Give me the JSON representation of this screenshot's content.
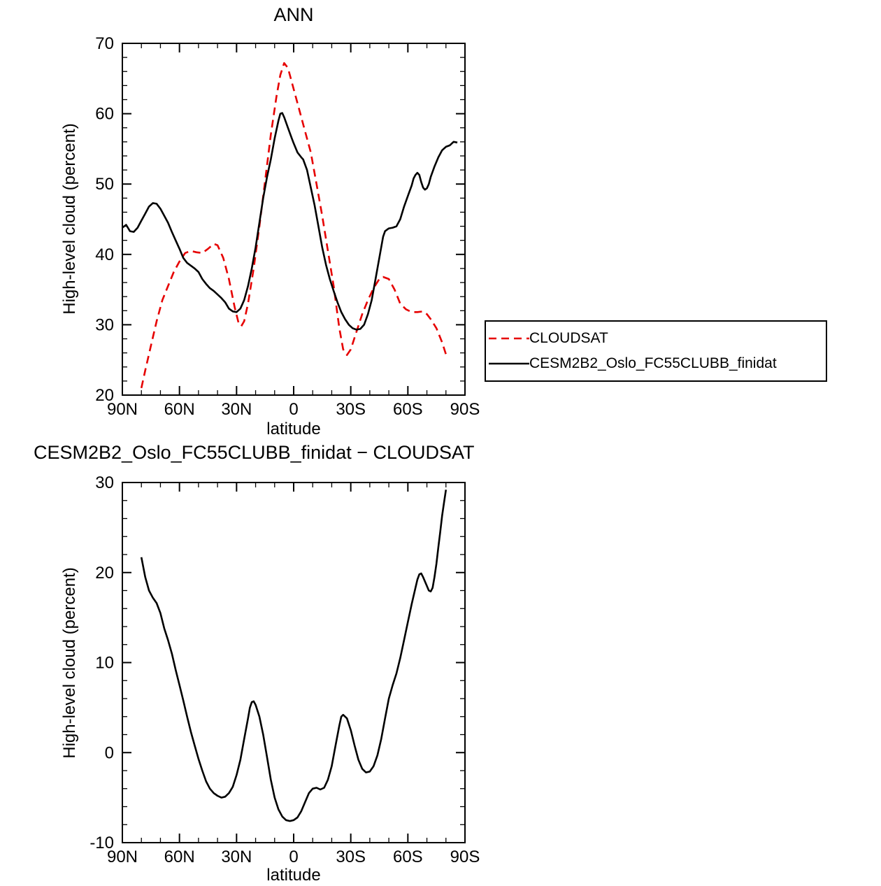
{
  "colors": {
    "cloudsat_red": "#e60000",
    "model_black": "#000000",
    "axis": "#000000"
  },
  "legend": {
    "entries": [
      "CLOUDSAT",
      "CESM2B2_Oslo_FC55CLUBB_finidat"
    ]
  },
  "chart_data": [
    {
      "id": "top",
      "type": "line",
      "title": "ANN",
      "ylabel": "High-level cloud (percent)",
      "xlabel": "latitude",
      "ylim": [
        20,
        70
      ],
      "xlim": [
        90,
        -90
      ],
      "yminor": 2,
      "xminor": 10,
      "yticks": [
        {
          "v": 20,
          "label": "20"
        },
        {
          "v": 30,
          "label": "30"
        },
        {
          "v": 40,
          "label": "40"
        },
        {
          "v": 50,
          "label": "50"
        },
        {
          "v": 60,
          "label": "60"
        },
        {
          "v": 70,
          "label": "70"
        }
      ],
      "xticks": [
        {
          "v": 90,
          "label": "90N"
        },
        {
          "v": 60,
          "label": "60N"
        },
        {
          "v": 30,
          "label": "30N"
        },
        {
          "v": 0,
          "label": "0"
        },
        {
          "v": -30,
          "label": "30S"
        },
        {
          "v": -60,
          "label": "60S"
        },
        {
          "v": -90,
          "label": "90S"
        }
      ],
      "legend_position": "outside-right",
      "series": [
        {
          "name": "CLOUDSAT",
          "color": "#e60000",
          "dash": "11 7",
          "points": [
            [
              80,
              21
            ],
            [
              78,
              23.5
            ],
            [
              75,
              27
            ],
            [
              72,
              30.5
            ],
            [
              69,
              33.5
            ],
            [
              66,
              35.5
            ],
            [
              63,
              37.5
            ],
            [
              60,
              39
            ],
            [
              57,
              40.2
            ],
            [
              54,
              40.5
            ],
            [
              51,
              40.3
            ],
            [
              48,
              40.2
            ],
            [
              45,
              40.8
            ],
            [
              42,
              41.5
            ],
            [
              40,
              41.3
            ],
            [
              37,
              39.5
            ],
            [
              34,
              36.5
            ],
            [
              31,
              32.5
            ],
            [
              29,
              30.3
            ],
            [
              27.5,
              29.8
            ],
            [
              26,
              30.5
            ],
            [
              24,
              33
            ],
            [
              21,
              38
            ],
            [
              18,
              44
            ],
            [
              15,
              50.5
            ],
            [
              12,
              57
            ],
            [
              9,
              62.5
            ],
            [
              7,
              65.5
            ],
            [
              5,
              67.2
            ],
            [
              3,
              66.5
            ],
            [
              1,
              64.5
            ],
            [
              0,
              63.5
            ],
            [
              -3,
              60.5
            ],
            [
              -6,
              57.5
            ],
            [
              -9,
              54.5
            ],
            [
              -12,
              50
            ],
            [
              -15,
              45.5
            ],
            [
              -18,
              40.5
            ],
            [
              -21,
              35.5
            ],
            [
              -24,
              29.5
            ],
            [
              -26,
              26.5
            ],
            [
              -28,
              25.7
            ],
            [
              -30,
              26.5
            ],
            [
              -33,
              29
            ],
            [
              -36,
              31.5
            ],
            [
              -39,
              33.5
            ],
            [
              -42,
              35.2
            ],
            [
              -45,
              36.5
            ],
            [
              -47,
              36.8
            ],
            [
              -50,
              36.5
            ],
            [
              -53,
              35
            ],
            [
              -56,
              33
            ],
            [
              -59,
              32.2
            ],
            [
              -62,
              31.8
            ],
            [
              -65,
              31.8
            ],
            [
              -68,
              31.9
            ],
            [
              -70,
              31.5
            ],
            [
              -72,
              30.8
            ],
            [
              -75,
              29.5
            ],
            [
              -78,
              27.5
            ],
            [
              -80,
              25.8
            ]
          ]
        },
        {
          "name": "CESM2B2_Oslo_FC55CLUBB_finidat",
          "color": "#000000",
          "dash": "",
          "points": [
            [
              90,
              43.8
            ],
            [
              88,
              44.2
            ],
            [
              86,
              43.3
            ],
            [
              84,
              43.2
            ],
            [
              82,
              43.8
            ],
            [
              80,
              44.8
            ],
            [
              78,
              45.8
            ],
            [
              76,
              46.8
            ],
            [
              74,
              47.3
            ],
            [
              72,
              47.2
            ],
            [
              70,
              46.5
            ],
            [
              68,
              45.5
            ],
            [
              66,
              44.5
            ],
            [
              64,
              43.2
            ],
            [
              62,
              42
            ],
            [
              60,
              40.8
            ],
            [
              58,
              39.5
            ],
            [
              56,
              38.8
            ],
            [
              54,
              38.4
            ],
            [
              52,
              38
            ],
            [
              50,
              37.5
            ],
            [
              48,
              36.5
            ],
            [
              46,
              35.8
            ],
            [
              44,
              35.2
            ],
            [
              42,
              34.8
            ],
            [
              40,
              34.3
            ],
            [
              38,
              33.8
            ],
            [
              36,
              33.2
            ],
            [
              34,
              32.3
            ],
            [
              32,
              31.9
            ],
            [
              30,
              31.8
            ],
            [
              28,
              32.3
            ],
            [
              26,
              33.5
            ],
            [
              24,
              35.5
            ],
            [
              22,
              38
            ],
            [
              20,
              41
            ],
            [
              18,
              44.5
            ],
            [
              16,
              48
            ],
            [
              14,
              51
            ],
            [
              12,
              53.5
            ],
            [
              10,
              56.5
            ],
            [
              8,
              59
            ],
            [
              7,
              60
            ],
            [
              6,
              60.1
            ],
            [
              5,
              59.5
            ],
            [
              3,
              58
            ],
            [
              1,
              56.5
            ],
            [
              0,
              55.8
            ],
            [
              -2,
              54.5
            ],
            [
              -4,
              53.8
            ],
            [
              -5,
              53.5
            ],
            [
              -7,
              52
            ],
            [
              -9,
              49.5
            ],
            [
              -11,
              47
            ],
            [
              -13,
              44
            ],
            [
              -15,
              41
            ],
            [
              -17,
              38.5
            ],
            [
              -19,
              36.5
            ],
            [
              -21,
              34.8
            ],
            [
              -23,
              33.2
            ],
            [
              -25,
              31.8
            ],
            [
              -27,
              30.8
            ],
            [
              -29,
              30
            ],
            [
              -31,
              29.5
            ],
            [
              -33,
              29.3
            ],
            [
              -35,
              29.4
            ],
            [
              -37,
              30
            ],
            [
              -39,
              31.5
            ],
            [
              -41,
              33.5
            ],
            [
              -43,
              36.5
            ],
            [
              -45,
              39.5
            ],
            [
              -46,
              41
            ],
            [
              -47,
              42.5
            ],
            [
              -48,
              43.3
            ],
            [
              -50,
              43.7
            ],
            [
              -52,
              43.8
            ],
            [
              -54,
              44
            ],
            [
              -56,
              45
            ],
            [
              -58,
              46.8
            ],
            [
              -60,
              48.3
            ],
            [
              -62,
              49.8
            ],
            [
              -63,
              50.8
            ],
            [
              -64,
              51.3
            ],
            [
              -65,
              51.6
            ],
            [
              -66,
              51.3
            ],
            [
              -67,
              50.3
            ],
            [
              -68,
              49.5
            ],
            [
              -69,
              49.2
            ],
            [
              -70,
              49.4
            ],
            [
              -71,
              50
            ],
            [
              -72,
              51
            ],
            [
              -74,
              52.5
            ],
            [
              -76,
              53.8
            ],
            [
              -78,
              54.8
            ],
            [
              -80,
              55.3
            ],
            [
              -82,
              55.5
            ],
            [
              -84,
              56
            ],
            [
              -86,
              55.9
            ]
          ]
        }
      ]
    },
    {
      "id": "bottom",
      "type": "line",
      "title": "CESM2B2_Oslo_FC55CLUBB_finidat − CLOUDSAT",
      "ylabel": "High-level cloud (percent)",
      "xlabel": "latitude",
      "ylim": [
        -10,
        30
      ],
      "xlim": [
        90,
        -90
      ],
      "yminor": 2,
      "xminor": 10,
      "yticks": [
        {
          "v": -10,
          "label": "-10"
        },
        {
          "v": 0,
          "label": "0"
        },
        {
          "v": 10,
          "label": "10"
        },
        {
          "v": 20,
          "label": "20"
        },
        {
          "v": 30,
          "label": "30"
        }
      ],
      "xticks": [
        {
          "v": 90,
          "label": "90N"
        },
        {
          "v": 60,
          "label": "60N"
        },
        {
          "v": 30,
          "label": "30N"
        },
        {
          "v": 0,
          "label": "0"
        },
        {
          "v": -30,
          "label": "30S"
        },
        {
          "v": -60,
          "label": "60S"
        },
        {
          "v": -90,
          "label": "90S"
        }
      ],
      "series": [
        {
          "name": "CESM2B2_Oslo_FC55CLUBB_finidat minus CLOUDSAT",
          "color": "#000000",
          "dash": "",
          "points": [
            [
              80,
              21.7
            ],
            [
              78,
              19.5
            ],
            [
              76,
              18
            ],
            [
              74,
              17.2
            ],
            [
              72,
              16.6
            ],
            [
              70,
              15.5
            ],
            [
              68,
              13.8
            ],
            [
              66,
              12.5
            ],
            [
              64,
              11
            ],
            [
              62,
              9.2
            ],
            [
              60,
              7.5
            ],
            [
              58,
              5.8
            ],
            [
              56,
              4
            ],
            [
              54,
              2.3
            ],
            [
              52,
              0.8
            ],
            [
              50,
              -0.7
            ],
            [
              48,
              -2
            ],
            [
              46,
              -3.2
            ],
            [
              44,
              -4
            ],
            [
              42,
              -4.5
            ],
            [
              40,
              -4.8
            ],
            [
              38,
              -5
            ],
            [
              36,
              -4.9
            ],
            [
              34,
              -4.5
            ],
            [
              32,
              -3.8
            ],
            [
              30,
              -2.5
            ],
            [
              28,
              -0.8
            ],
            [
              26,
              1.5
            ],
            [
              24,
              3.8
            ],
            [
              23,
              5
            ],
            [
              22,
              5.6
            ],
            [
              21,
              5.7
            ],
            [
              20,
              5.3
            ],
            [
              18,
              4
            ],
            [
              16,
              2
            ],
            [
              14,
              -0.5
            ],
            [
              12,
              -3
            ],
            [
              10,
              -5
            ],
            [
              8,
              -6.3
            ],
            [
              6,
              -7.1
            ],
            [
              4,
              -7.5
            ],
            [
              2,
              -7.6
            ],
            [
              0,
              -7.5
            ],
            [
              -2,
              -7.2
            ],
            [
              -4,
              -6.5
            ],
            [
              -6,
              -5.5
            ],
            [
              -8,
              -4.5
            ],
            [
              -10,
              -4
            ],
            [
              -12,
              -3.9
            ],
            [
              -14,
              -4.1
            ],
            [
              -16,
              -3.9
            ],
            [
              -18,
              -3
            ],
            [
              -20,
              -1.5
            ],
            [
              -22,
              0.8
            ],
            [
              -24,
              3
            ],
            [
              -25,
              4
            ],
            [
              -26,
              4.2
            ],
            [
              -28,
              3.8
            ],
            [
              -30,
              2.5
            ],
            [
              -32,
              0.8
            ],
            [
              -34,
              -0.8
            ],
            [
              -36,
              -1.8
            ],
            [
              -38,
              -2.2
            ],
            [
              -40,
              -2.1
            ],
            [
              -42,
              -1.5
            ],
            [
              -44,
              -0.3
            ],
            [
              -46,
              1.5
            ],
            [
              -48,
              3.8
            ],
            [
              -50,
              6
            ],
            [
              -52,
              7.5
            ],
            [
              -54,
              8.8
            ],
            [
              -56,
              10.5
            ],
            [
              -58,
              12.5
            ],
            [
              -60,
              14.5
            ],
            [
              -62,
              16.5
            ],
            [
              -64,
              18.3
            ],
            [
              -65,
              19.2
            ],
            [
              -66,
              19.8
            ],
            [
              -67,
              19.9
            ],
            [
              -68,
              19.5
            ],
            [
              -70,
              18.5
            ],
            [
              -71,
              18
            ],
            [
              -72,
              17.9
            ],
            [
              -73,
              18.3
            ],
            [
              -74,
              19.5
            ],
            [
              -75,
              21
            ],
            [
              -76,
              22.8
            ],
            [
              -77,
              24.5
            ],
            [
              -78,
              26.3
            ],
            [
              -79,
              27.8
            ],
            [
              -80,
              29.2
            ]
          ]
        }
      ]
    }
  ]
}
